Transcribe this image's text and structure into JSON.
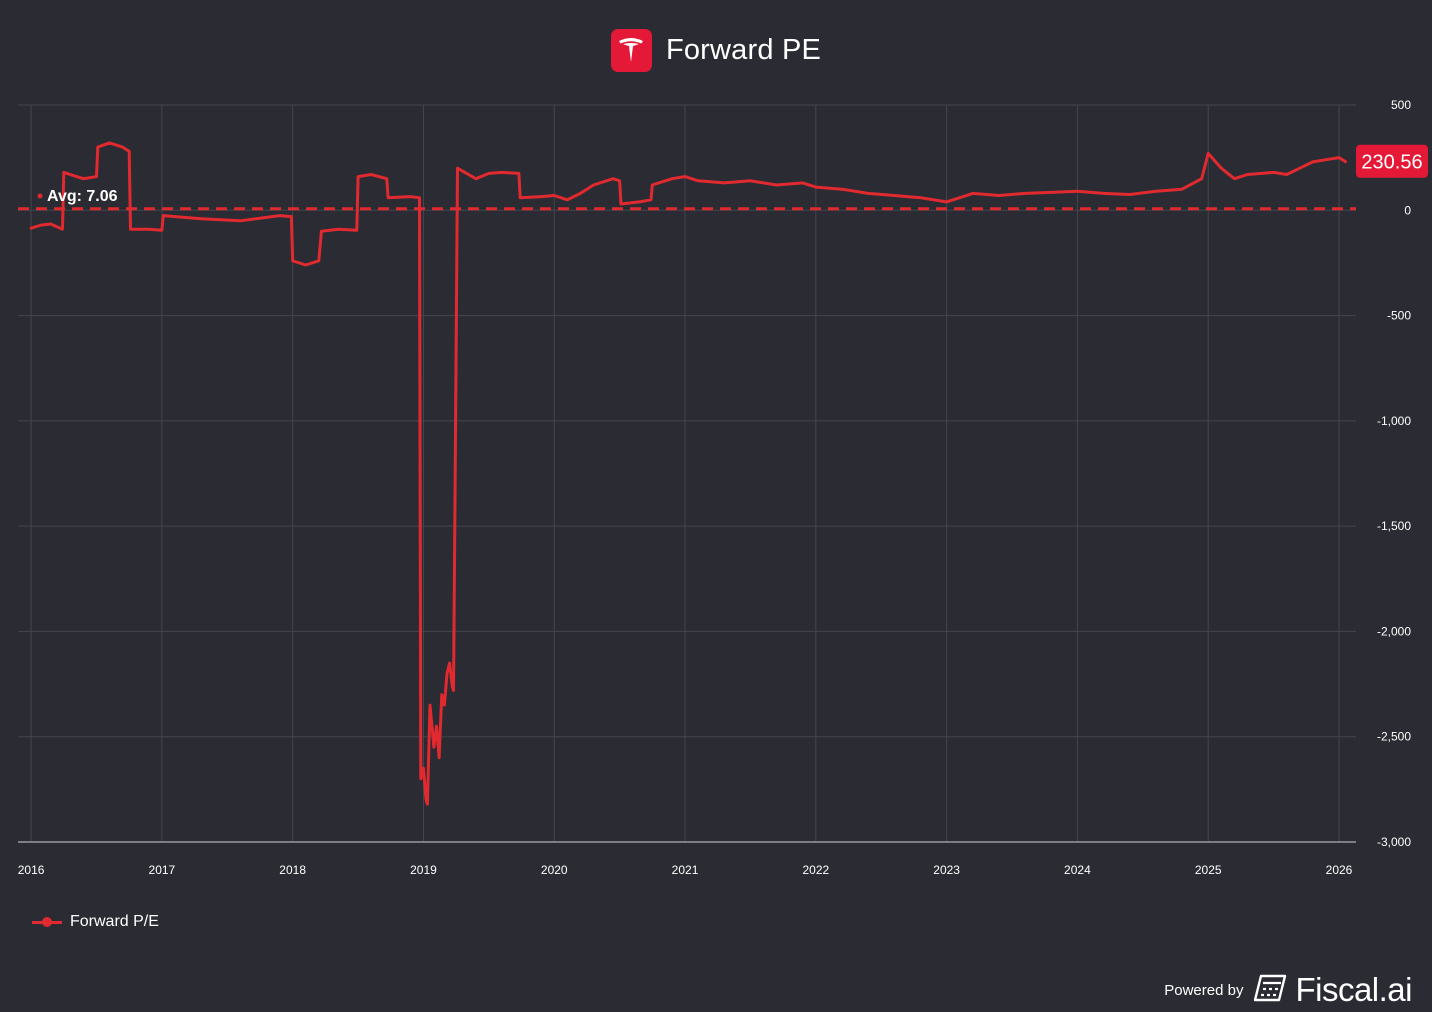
{
  "header": {
    "title": "Forward PE",
    "logo_icon": "tesla-logo-icon"
  },
  "footer": {
    "powered_by": "Powered by",
    "brand": "Fiscal.ai",
    "brand_icon": "fiscal-calculator-icon"
  },
  "legend": {
    "label": "Forward P/E"
  },
  "colors": {
    "background": "#2b2b33",
    "series": "#e02a2f",
    "grid": "#45454e",
    "accent": "#e31937"
  },
  "chart_data": {
    "type": "line",
    "title": "Forward PE",
    "x_ticks": [
      "2016",
      "2017",
      "2018",
      "2019",
      "2020",
      "2021",
      "2022",
      "2023",
      "2024",
      "2025",
      "2026"
    ],
    "y_ticks": [
      500,
      0,
      -500,
      -1000,
      -1500,
      -2000,
      -2500,
      -3000
    ],
    "y_tick_labels": [
      "500",
      "0",
      "-500",
      "-1,000",
      "-1,500",
      "-2,000",
      "-2,500",
      "-3,000"
    ],
    "ylim": [
      -3000,
      500
    ],
    "xlim": [
      2015.9,
      2026.13
    ],
    "grid": true,
    "legend_position": "bottom-left",
    "y_axis_side": "right",
    "average": {
      "label": "Avg: 7.06",
      "value": 7.06
    },
    "last_value": {
      "label": "230.56",
      "value": 230.56
    },
    "series": [
      {
        "name": "Forward P/E",
        "color": "#e02a2f",
        "points": [
          [
            2016.0,
            -85
          ],
          [
            2016.08,
            -70
          ],
          [
            2016.15,
            -65
          ],
          [
            2016.24,
            -90
          ],
          [
            2016.25,
            180
          ],
          [
            2016.4,
            150
          ],
          [
            2016.5,
            160
          ],
          [
            2016.51,
            300
          ],
          [
            2016.6,
            320
          ],
          [
            2016.7,
            300
          ],
          [
            2016.75,
            280
          ],
          [
            2016.76,
            -90
          ],
          [
            2016.9,
            -90
          ],
          [
            2017.0,
            -95
          ],
          [
            2017.01,
            -25
          ],
          [
            2017.3,
            -40
          ],
          [
            2017.6,
            -50
          ],
          [
            2017.9,
            -25
          ],
          [
            2017.99,
            -30
          ],
          [
            2018.0,
            -240
          ],
          [
            2018.1,
            -260
          ],
          [
            2018.2,
            -240
          ],
          [
            2018.22,
            -100
          ],
          [
            2018.35,
            -90
          ],
          [
            2018.49,
            -95
          ],
          [
            2018.5,
            160
          ],
          [
            2018.6,
            170
          ],
          [
            2018.72,
            150
          ],
          [
            2018.73,
            60
          ],
          [
            2018.9,
            65
          ],
          [
            2018.97,
            60
          ],
          [
            2018.98,
            -2700
          ],
          [
            2019.0,
            -2650
          ],
          [
            2019.02,
            -2800
          ],
          [
            2019.03,
            -2820
          ],
          [
            2019.05,
            -2350
          ],
          [
            2019.08,
            -2550
          ],
          [
            2019.1,
            -2450
          ],
          [
            2019.12,
            -2600
          ],
          [
            2019.14,
            -2300
          ],
          [
            2019.16,
            -2350
          ],
          [
            2019.18,
            -2200
          ],
          [
            2019.2,
            -2150
          ],
          [
            2019.22,
            -2260
          ],
          [
            2019.23,
            -2280
          ],
          [
            2019.24,
            -1500
          ],
          [
            2019.26,
            200
          ],
          [
            2019.4,
            150
          ],
          [
            2019.5,
            175
          ],
          [
            2019.6,
            180
          ],
          [
            2019.73,
            175
          ],
          [
            2019.74,
            60
          ],
          [
            2019.9,
            65
          ],
          [
            2020.0,
            70
          ],
          [
            2020.1,
            50
          ],
          [
            2020.2,
            80
          ],
          [
            2020.3,
            120
          ],
          [
            2020.45,
            150
          ],
          [
            2020.5,
            140
          ],
          [
            2020.51,
            30
          ],
          [
            2020.65,
            40
          ],
          [
            2020.74,
            50
          ],
          [
            2020.75,
            120
          ],
          [
            2020.9,
            150
          ],
          [
            2021.0,
            160
          ],
          [
            2021.1,
            140
          ],
          [
            2021.3,
            130
          ],
          [
            2021.5,
            140
          ],
          [
            2021.7,
            120
          ],
          [
            2021.9,
            130
          ],
          [
            2022.0,
            110
          ],
          [
            2022.2,
            100
          ],
          [
            2022.4,
            80
          ],
          [
            2022.6,
            70
          ],
          [
            2022.8,
            60
          ],
          [
            2023.0,
            40
          ],
          [
            2023.2,
            80
          ],
          [
            2023.4,
            70
          ],
          [
            2023.6,
            80
          ],
          [
            2023.8,
            85
          ],
          [
            2024.0,
            90
          ],
          [
            2024.2,
            80
          ],
          [
            2024.4,
            75
          ],
          [
            2024.6,
            90
          ],
          [
            2024.8,
            100
          ],
          [
            2024.95,
            150
          ],
          [
            2025.0,
            270
          ],
          [
            2025.1,
            200
          ],
          [
            2025.2,
            150
          ],
          [
            2025.3,
            170
          ],
          [
            2025.5,
            180
          ],
          [
            2025.6,
            170
          ],
          [
            2025.7,
            200
          ],
          [
            2025.8,
            230
          ],
          [
            2025.9,
            240
          ],
          [
            2026.0,
            250
          ],
          [
            2026.05,
            230.56
          ]
        ]
      }
    ]
  }
}
